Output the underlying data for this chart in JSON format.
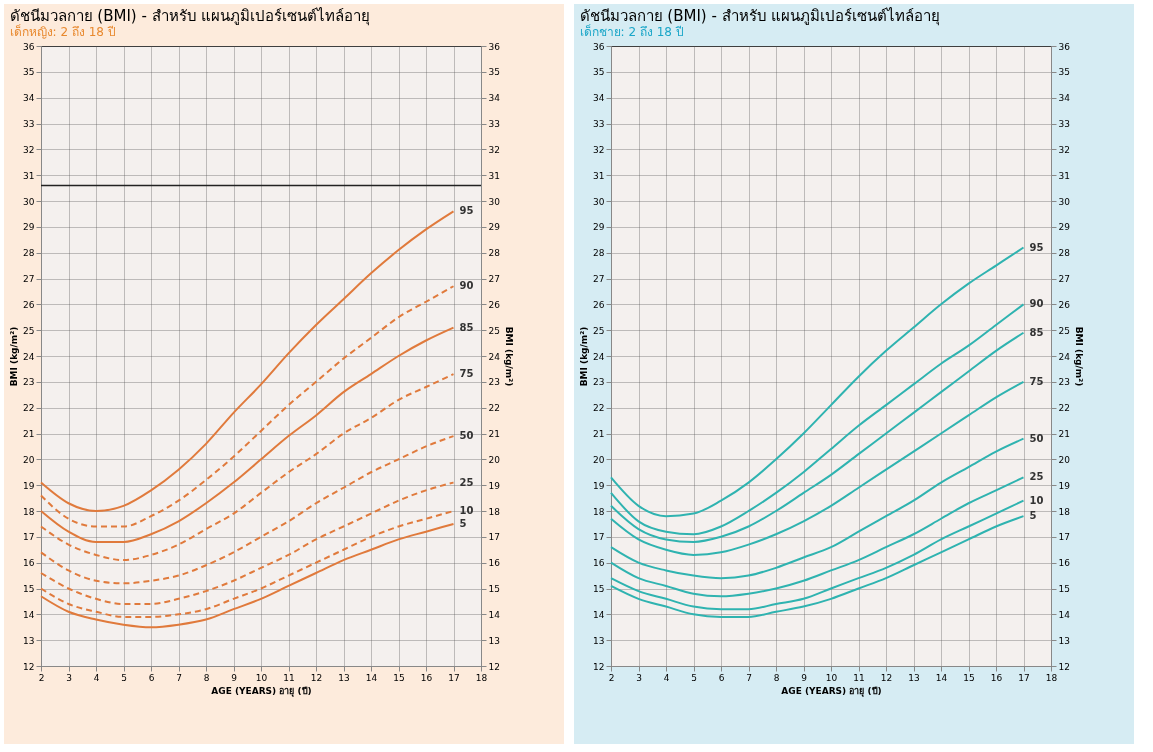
{
  "chart_data": [
    {
      "type": "line",
      "title": "ดัชนีมวลกาย (BMI) - สำหรับ แผนภูมิเปอร์เซนต์ไทล์อายุ",
      "subtitle": "เด็กหญิง: 2 ถึง 18 ปี",
      "xlabel": "AGE (YEARS) อายุ (ปี)",
      "ylabel": "BMI (kg/m²)",
      "y2label": "BMI (kg/m²)",
      "x": [
        2,
        3,
        4,
        5,
        6,
        7,
        8,
        9,
        10,
        11,
        12,
        13,
        14,
        15,
        16,
        17
      ],
      "series": [
        {
          "name": "95",
          "color": "#e07a3c",
          "line_style": "solid",
          "values": [
            19.1,
            18.3,
            18.0,
            18.2,
            18.8,
            19.6,
            20.6,
            21.8,
            22.9,
            24.1,
            25.2,
            26.2,
            27.2,
            28.1,
            28.9,
            29.6
          ]
        },
        {
          "name": "90",
          "color": "#e07a3c",
          "line_style": "dashed",
          "values": [
            18.6,
            17.7,
            17.4,
            17.4,
            17.8,
            18.4,
            19.2,
            20.1,
            21.1,
            22.1,
            23.0,
            23.9,
            24.7,
            25.5,
            26.1,
            26.7
          ]
        },
        {
          "name": "85",
          "color": "#e07a3c",
          "line_style": "solid",
          "values": [
            18.0,
            17.2,
            16.8,
            16.8,
            17.1,
            17.6,
            18.3,
            19.1,
            20.0,
            20.9,
            21.7,
            22.6,
            23.3,
            24.0,
            24.6,
            25.1
          ]
        },
        {
          "name": "75",
          "color": "#e07a3c",
          "line_style": "dashed",
          "values": [
            17.4,
            16.7,
            16.3,
            16.1,
            16.3,
            16.7,
            17.3,
            17.9,
            18.7,
            19.5,
            20.2,
            21.0,
            21.6,
            22.3,
            22.8,
            23.3
          ]
        },
        {
          "name": "50",
          "color": "#e07a3c",
          "line_style": "dashed",
          "values": [
            16.4,
            15.7,
            15.3,
            15.2,
            15.3,
            15.5,
            15.9,
            16.4,
            17.0,
            17.6,
            18.3,
            18.9,
            19.5,
            20.0,
            20.5,
            20.9
          ]
        },
        {
          "name": "25",
          "color": "#e07a3c",
          "line_style": "dashed",
          "values": [
            15.6,
            15.0,
            14.6,
            14.4,
            14.4,
            14.6,
            14.9,
            15.3,
            15.8,
            16.3,
            16.9,
            17.4,
            17.9,
            18.4,
            18.8,
            19.1
          ]
        },
        {
          "name": "10",
          "color": "#e07a3c",
          "line_style": "dashed",
          "values": [
            15.0,
            14.4,
            14.1,
            13.9,
            13.9,
            14.0,
            14.2,
            14.6,
            15.0,
            15.5,
            16.0,
            16.5,
            17.0,
            17.4,
            17.7,
            18.0
          ]
        },
        {
          "name": "5",
          "color": "#e07a3c",
          "line_style": "solid",
          "values": [
            14.7,
            14.1,
            13.8,
            13.6,
            13.5,
            13.6,
            13.8,
            14.2,
            14.6,
            15.1,
            15.6,
            16.1,
            16.5,
            16.9,
            17.2,
            17.5
          ]
        }
      ],
      "xlim": [
        2,
        18
      ],
      "xticks": [
        2,
        3,
        4,
        5,
        6,
        7,
        8,
        9,
        10,
        11,
        12,
        13,
        14,
        15,
        16,
        17,
        18
      ],
      "ylim": [
        12,
        36
      ],
      "yticks": [
        12,
        13,
        14,
        15,
        16,
        17,
        18,
        19,
        20,
        21,
        22,
        23,
        24,
        25,
        26,
        27,
        28,
        29,
        30,
        31,
        32,
        33,
        34,
        35,
        36
      ],
      "y2lim": [
        12,
        36
      ],
      "y2ticks": [
        12,
        13,
        14,
        15,
        16,
        17,
        18,
        19,
        20,
        21,
        22,
        23,
        24,
        25,
        26,
        27,
        28,
        29,
        30,
        31,
        32,
        33,
        34,
        35,
        36
      ],
      "grid": true,
      "ref_lines": [
        {
          "axis": "y",
          "value": 30.6,
          "color": "#222222"
        }
      ]
    },
    {
      "type": "line",
      "title": "ดัชนีมวลกาย (BMI) - สำหรับ แผนภูมิเปอร์เซนต์ไทล์อายุ",
      "subtitle": "เด็กชาย: 2 ถึง 18 ปี",
      "xlabel": "AGE (YEARS) อายุ (ปี)",
      "ylabel": "BMI (kg/m²)",
      "y2label": "BMI (kg/m²)",
      "x": [
        2,
        3,
        4,
        5,
        6,
        7,
        8,
        9,
        10,
        11,
        12,
        13,
        14,
        15,
        16,
        17
      ],
      "series": [
        {
          "name": "95",
          "color": "#2fb3b0",
          "line_style": "solid",
          "values": [
            19.3,
            18.2,
            17.8,
            17.9,
            18.4,
            19.1,
            20.0,
            21.0,
            22.1,
            23.2,
            24.2,
            25.1,
            26.0,
            26.8,
            27.5,
            28.2
          ]
        },
        {
          "name": "90",
          "color": "#2fb3b0",
          "line_style": "solid",
          "values": [
            18.7,
            17.6,
            17.2,
            17.1,
            17.4,
            18.0,
            18.7,
            19.5,
            20.4,
            21.3,
            22.1,
            22.9,
            23.7,
            24.4,
            25.2,
            26.0
          ]
        },
        {
          "name": "85",
          "color": "#2fb3b0",
          "line_style": "solid",
          "values": [
            18.2,
            17.3,
            16.9,
            16.8,
            17.0,
            17.4,
            18.0,
            18.7,
            19.4,
            20.2,
            21.0,
            21.8,
            22.6,
            23.4,
            24.2,
            24.9
          ]
        },
        {
          "name": "75",
          "color": "#2fb3b0",
          "line_style": "solid",
          "values": [
            17.7,
            16.9,
            16.5,
            16.3,
            16.4,
            16.7,
            17.1,
            17.6,
            18.2,
            18.9,
            19.6,
            20.3,
            21.0,
            21.7,
            22.4,
            23.0
          ]
        },
        {
          "name": "50",
          "color": "#2fb3b0",
          "line_style": "solid",
          "values": [
            16.6,
            16.0,
            15.7,
            15.5,
            15.4,
            15.5,
            15.8,
            16.2,
            16.6,
            17.2,
            17.8,
            18.4,
            19.1,
            19.7,
            20.3,
            20.8
          ]
        },
        {
          "name": "25",
          "color": "#2fb3b0",
          "line_style": "solid",
          "values": [
            16.0,
            15.4,
            15.1,
            14.8,
            14.7,
            14.8,
            15.0,
            15.3,
            15.7,
            16.1,
            16.6,
            17.1,
            17.7,
            18.3,
            18.8,
            19.3
          ]
        },
        {
          "name": "10",
          "color": "#2fb3b0",
          "line_style": "solid",
          "values": [
            15.4,
            14.9,
            14.6,
            14.3,
            14.2,
            14.2,
            14.4,
            14.6,
            15.0,
            15.4,
            15.8,
            16.3,
            16.9,
            17.4,
            17.9,
            18.4
          ]
        },
        {
          "name": "5",
          "color": "#2fb3b0",
          "line_style": "solid",
          "values": [
            15.1,
            14.6,
            14.3,
            14.0,
            13.9,
            13.9,
            14.1,
            14.3,
            14.6,
            15.0,
            15.4,
            15.9,
            16.4,
            16.9,
            17.4,
            17.8
          ]
        }
      ],
      "xlim": [
        2,
        18
      ],
      "xticks": [
        2,
        3,
        4,
        5,
        6,
        7,
        8,
        9,
        10,
        11,
        12,
        13,
        14,
        15,
        16,
        17,
        18
      ],
      "ylim": [
        12,
        36
      ],
      "yticks": [
        12,
        13,
        14,
        15,
        16,
        17,
        18,
        19,
        20,
        21,
        22,
        23,
        24,
        25,
        26,
        27,
        28,
        29,
        30,
        31,
        32,
        33,
        34,
        35,
        36
      ],
      "y2lim": [
        12,
        36
      ],
      "y2ticks": [
        12,
        13,
        14,
        15,
        16,
        17,
        18,
        19,
        20,
        21,
        22,
        23,
        24,
        25,
        26,
        27,
        28,
        29,
        30,
        31,
        32,
        33,
        34,
        35,
        36
      ],
      "grid": true
    }
  ]
}
